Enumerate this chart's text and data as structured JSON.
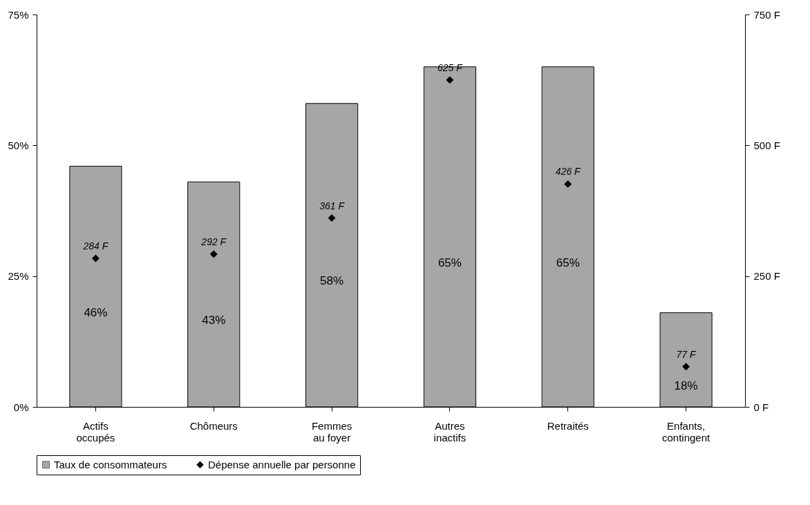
{
  "chart_data": {
    "type": "bar",
    "categories": [
      "Actifs\noccupés",
      "Chômeurs",
      "Femmes\nau foyer",
      "Autres\ninactifs",
      "Retraités",
      "Enfants,\ncontingent"
    ],
    "series": [
      {
        "name": "Taux de consommateurs",
        "color": "#a6a6a6",
        "values": [
          46,
          43,
          58,
          65,
          65,
          18
        ],
        "value_labels": [
          "46%",
          "43%",
          "58%",
          "65%",
          "65%",
          "18%"
        ]
      },
      {
        "name": "Dépense annuelle par personne",
        "type": "scatter",
        "axis": "y2",
        "color": "#000000",
        "values": [
          284,
          292,
          361,
          625,
          426,
          77
        ],
        "value_labels": [
          "284 F",
          "292 F",
          "361 F",
          "625 F",
          "426 F",
          "77 F"
        ]
      }
    ],
    "ylim": [
      0,
      75
    ],
    "yticks": [
      {
        "value": 0,
        "label": "0%"
      },
      {
        "value": 25,
        "label": "25%"
      },
      {
        "value": 50,
        "label": "50%"
      },
      {
        "value": 75,
        "label": "75%"
      }
    ],
    "y2lim": [
      0,
      750
    ],
    "y2ticks": [
      {
        "value": 0,
        "label": "0 F"
      },
      {
        "value": 250,
        "label": "250 F"
      },
      {
        "value": 500,
        "label": "500 F"
      },
      {
        "value": 750,
        "label": "750 F"
      }
    ],
    "marker": "diamond",
    "legend": "bottom",
    "grid": false
  }
}
